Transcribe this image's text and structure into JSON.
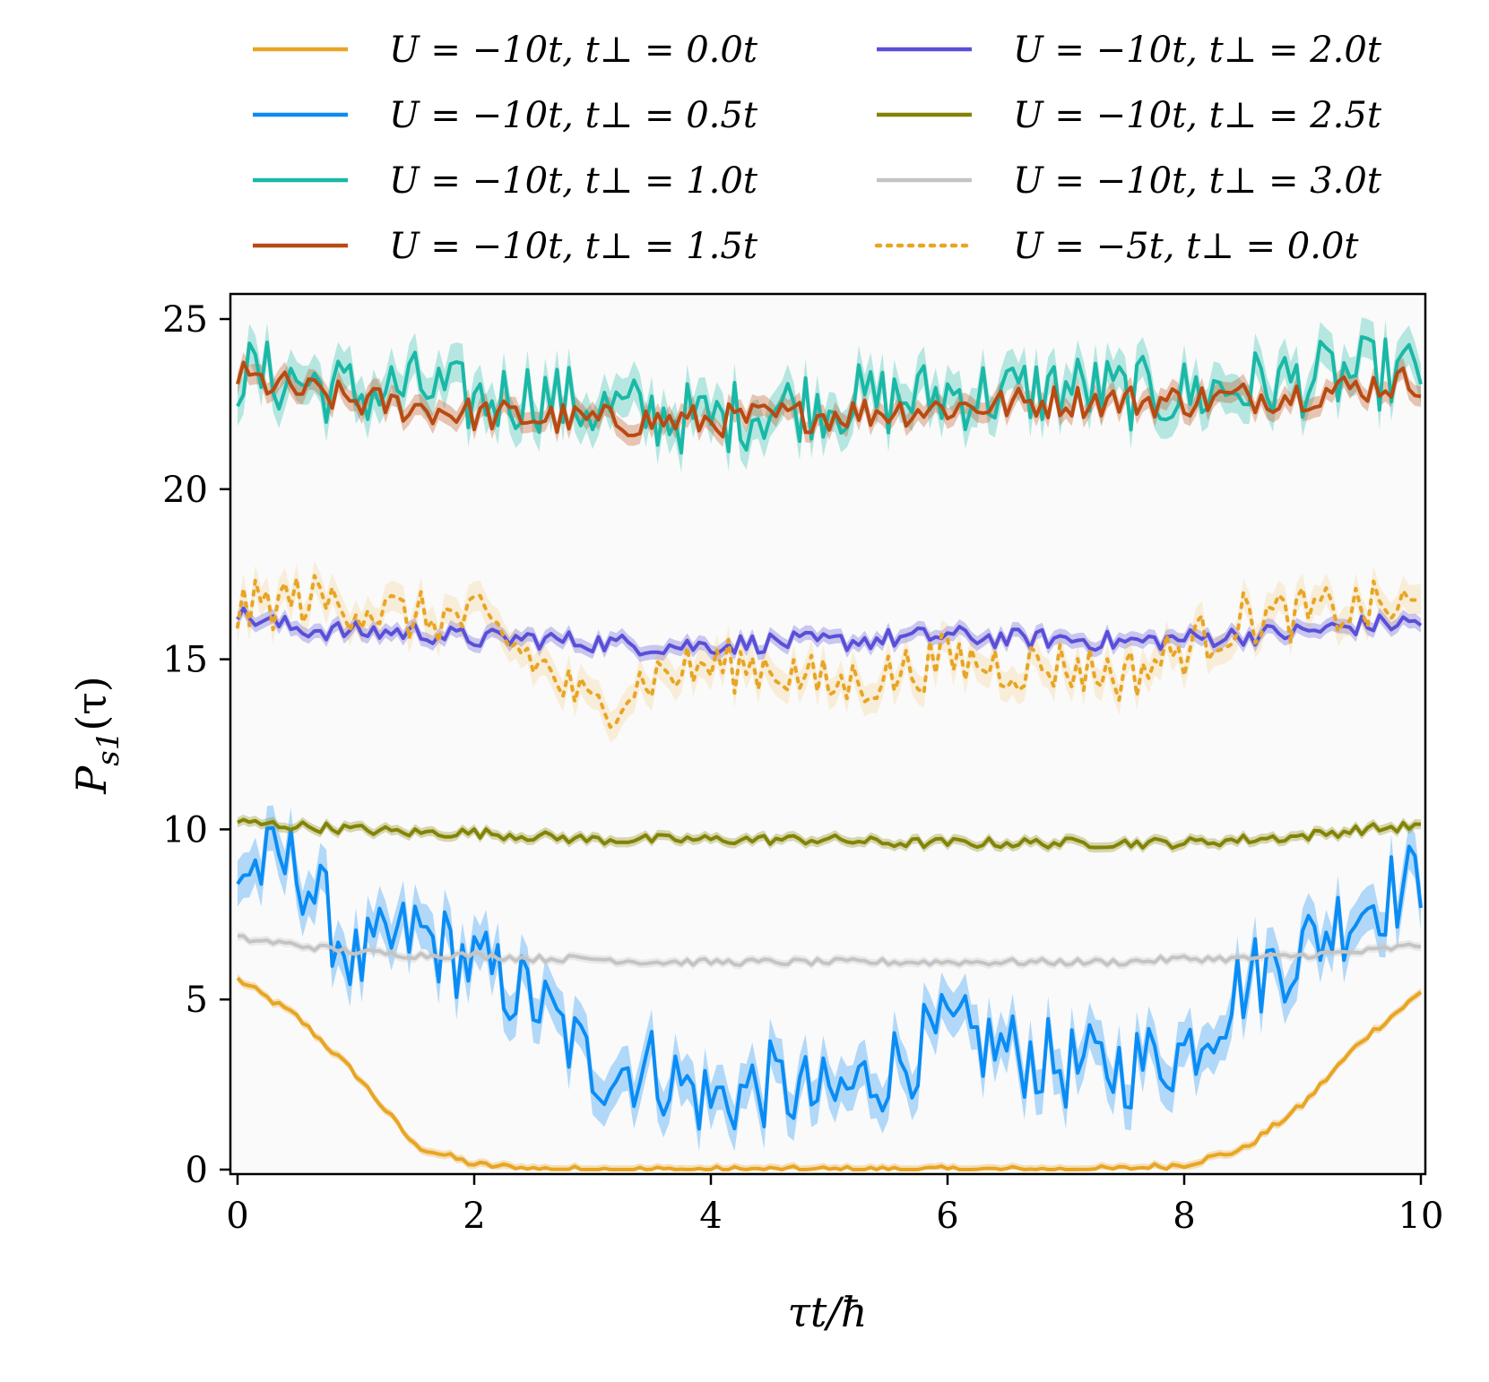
{
  "chart_data": {
    "type": "line",
    "title": "",
    "xlabel": "τt/ħ",
    "ylabel": "P_s1(τ)",
    "ylabel_main": "P",
    "ylabel_sub": "s1",
    "ylabel_arg": "(τ)",
    "xlim": [
      0,
      10
    ],
    "ylim": [
      0,
      25.5
    ],
    "x_ticks": [
      0,
      2,
      4,
      6,
      8,
      10
    ],
    "y_ticks": [
      0,
      5,
      10,
      15,
      20,
      25
    ],
    "x_tick_labels": [
      "0",
      "2",
      "4",
      "6",
      "8",
      "10"
    ],
    "y_tick_labels": [
      "0",
      "5",
      "10",
      "15",
      "20",
      "25"
    ],
    "grid": false,
    "legend_position": "top, outside plot, two columns",
    "x": [
      0,
      0.5,
      1,
      1.5,
      2,
      2.5,
      3,
      3.5,
      4,
      4.5,
      5,
      5.5,
      6,
      6.5,
      7,
      7.5,
      8,
      8.5,
      9,
      9.5,
      10
    ],
    "series": [
      {
        "name": "U = −10t, t⊥ = 0.0t",
        "color": "#e8a524",
        "dashed": false,
        "noise": 0.1,
        "values": [
          5.6,
          4.5,
          2.8,
          0.7,
          0.15,
          0.02,
          0,
          0,
          0,
          0,
          0,
          0,
          0,
          0,
          0,
          0.02,
          0.15,
          0.6,
          1.9,
          3.8,
          5.2
        ]
      },
      {
        "name": "U = −10t, t⊥ = 0.5t",
        "color": "#0a8cf4",
        "dashed": false,
        "noise": 1.3,
        "values": [
          8.8,
          9.0,
          6.0,
          7.0,
          6.0,
          5.0,
          3.0,
          3.0,
          2.0,
          2.5,
          2.0,
          3.0,
          4.0,
          3.5,
          3.0,
          3.0,
          3.5,
          5.5,
          6.5,
          7.8,
          8.5
        ]
      },
      {
        "name": "U = −10t, t⊥ = 1.0t",
        "color": "#1ab8a6",
        "dashed": false,
        "noise": 1.1,
        "values": [
          23.4,
          23.2,
          22.8,
          23.0,
          22.6,
          22.8,
          22.4,
          22.2,
          22.0,
          22.4,
          22.6,
          22.6,
          22.8,
          22.8,
          23.0,
          22.8,
          22.8,
          23.0,
          23.2,
          23.4,
          23.4
        ]
      },
      {
        "name": "U = −10t, t⊥ = 1.5t",
        "color": "#b84a12",
        "dashed": false,
        "noise": 0.5,
        "values": [
          23.3,
          22.9,
          22.6,
          22.4,
          22.2,
          22.1,
          22.0,
          22.0,
          22.0,
          22.1,
          22.2,
          22.3,
          22.4,
          22.5,
          22.6,
          22.6,
          22.6,
          22.7,
          22.8,
          23.0,
          23.2
        ]
      },
      {
        "name": "U = −10t, t⊥ = 2.0t",
        "color": "#5a4fd8",
        "dashed": false,
        "noise": 0.3,
        "values": [
          16.3,
          15.9,
          15.8,
          15.8,
          15.6,
          15.6,
          15.5,
          15.4,
          15.4,
          15.5,
          15.5,
          15.6,
          15.7,
          15.6,
          15.6,
          15.5,
          15.6,
          15.7,
          15.8,
          16.0,
          16.1
        ]
      },
      {
        "name": "U = −10t, t⊥ = 2.5t",
        "color": "#838407",
        "dashed": false,
        "noise": 0.15,
        "values": [
          10.2,
          10.1,
          10.0,
          9.9,
          9.9,
          9.8,
          9.7,
          9.7,
          9.7,
          9.7,
          9.7,
          9.6,
          9.6,
          9.6,
          9.6,
          9.6,
          9.6,
          9.7,
          9.8,
          10.0,
          10.1
        ]
      },
      {
        "name": "U = −10t, t⊥ = 3.0t",
        "color": "#c4c4c4",
        "dashed": false,
        "noise": 0.1,
        "values": [
          6.8,
          6.6,
          6.4,
          6.3,
          6.3,
          6.2,
          6.2,
          6.1,
          6.1,
          6.1,
          6.1,
          6.1,
          6.1,
          6.1,
          6.1,
          6.1,
          6.2,
          6.2,
          6.3,
          6.4,
          6.6
        ]
      },
      {
        "name": "U = −5t,   t⊥ = 0.0t",
        "color": "#e8a524",
        "dashed": true,
        "noise": 0.8,
        "values": [
          16.4,
          16.8,
          16.6,
          16.2,
          16.2,
          15.0,
          13.5,
          14.5,
          14.8,
          14.8,
          14.2,
          14.5,
          15.0,
          14.8,
          14.8,
          14.5,
          15.3,
          16.2,
          16.3,
          16.5,
          16.5
        ]
      }
    ]
  }
}
